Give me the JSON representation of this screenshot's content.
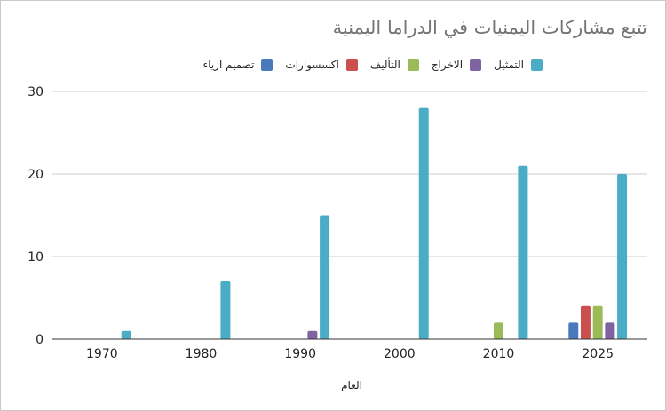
{
  "chart_data": {
    "type": "bar",
    "title": "تتبع مشاركات اليمنيات في الدراما اليمنية",
    "xlabel": "العام",
    "ylabel": "",
    "categories": [
      "1970",
      "1980",
      "1990",
      "2000",
      "2010",
      "2025"
    ],
    "ylim": [
      0,
      30
    ],
    "yticks": [
      0,
      10,
      20,
      30
    ],
    "grid": true,
    "legend_position": "top",
    "series": [
      {
        "name": "تصميم ازياء",
        "color": "#4a79bd",
        "values": [
          0,
          0,
          0,
          0,
          0,
          2
        ]
      },
      {
        "name": "اكسسوارات",
        "color": "#c9504f",
        "values": [
          0,
          0,
          0,
          0,
          0,
          4
        ]
      },
      {
        "name": "التأليف",
        "color": "#9bbb58",
        "values": [
          0,
          0,
          0,
          0,
          2,
          4
        ]
      },
      {
        "name": "الاخراج",
        "color": "#8064a2",
        "values": [
          0,
          0,
          1,
          0,
          0,
          2
        ]
      },
      {
        "name": "التمثيل",
        "color": "#4bacc6",
        "values": [
          1,
          7,
          15,
          28,
          21,
          20
        ]
      }
    ]
  }
}
